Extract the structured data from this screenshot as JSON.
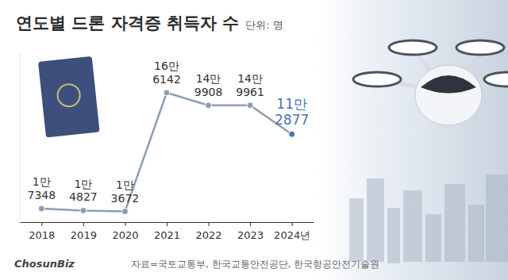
{
  "chart_data": {
    "type": "line",
    "title": "연도별 드론 자격증 취득자 수",
    "subtitle": "단위: 명",
    "categories": [
      "2018",
      "2019",
      "2020",
      "2021",
      "2022",
      "2023",
      "2024년"
    ],
    "values": [
      17348,
      14827,
      13672,
      166142,
      149908,
      149961,
      112877
    ],
    "value_labels": [
      "1만 7348",
      "1만 4827",
      "1만 3672",
      "16만 6142",
      "14만 9908",
      "14만 9961",
      "11만 2877"
    ],
    "color": "#8e9db1",
    "colors": [
      "#8e9db1",
      "#8e9db1",
      "#8e9db1",
      "#8e9db1",
      "#8e9db1",
      "#8e9db1",
      "#4d72b0"
    ],
    "marker": "circle",
    "data_labels": true,
    "tick_labels": "x",
    "grid": false,
    "ylim": [
      0,
      220000
    ],
    "annotations": [
      "자료=국토교통부, 한국교통안전공단, 한국항공안전기술원",
      "ChosunBiz"
    ]
  }
}
